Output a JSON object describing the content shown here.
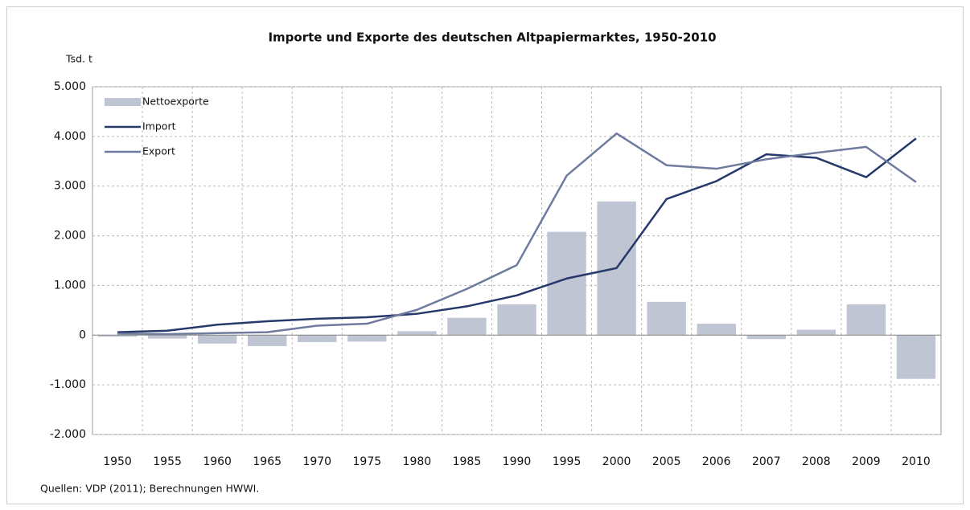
{
  "chart_data": {
    "type": "bar-line",
    "title": "Importe und Exporte des deutschen Altpapiermarktes, 1950-2010",
    "y_label": "Tsd. t",
    "note": "Quellen: VDP (2011); Berechnungen HWWI.",
    "categories": [
      "1950",
      "1955",
      "1960",
      "1965",
      "1970",
      "1975",
      "1980",
      "1985",
      "1990",
      "1995",
      "2000",
      "2005",
      "2006",
      "2007",
      "2008",
      "2009",
      "2010"
    ],
    "series": [
      {
        "name": "Nettoexporte",
        "kind": "bar",
        "color": "#c0c5d3",
        "values": [
          -30,
          -70,
          -170,
          -220,
          -140,
          -130,
          80,
          350,
          620,
          2080,
          2690,
          670,
          230,
          -80,
          110,
          620,
          -880
        ]
      },
      {
        "name": "Import",
        "kind": "line",
        "color": "#253a6b",
        "values": [
          60,
          90,
          210,
          280,
          330,
          360,
          430,
          580,
          800,
          1140,
          1350,
          2740,
          3100,
          3640,
          3570,
          3180,
          3960
        ]
      },
      {
        "name": "Export",
        "kind": "line",
        "color": "#6e7b9e",
        "values": [
          30,
          20,
          40,
          60,
          190,
          230,
          510,
          930,
          1410,
          3210,
          4060,
          3420,
          3350,
          3540,
          3670,
          3790,
          3080
        ]
      }
    ],
    "ylim": [
      -2000,
      5000
    ],
    "yticks": [
      {
        "value": -2000,
        "label": "-2.000"
      },
      {
        "value": -1000,
        "label": "-1.000"
      },
      0,
      {
        "value": 1000,
        "label": "1.000"
      },
      {
        "value": 2000,
        "label": "2.000"
      },
      {
        "value": 3000,
        "label": "3.000"
      },
      {
        "value": 4000,
        "label": "4.000"
      },
      {
        "value": 5000,
        "label": "5.000"
      }
    ],
    "grid": true,
    "legend": "upper-left"
  }
}
